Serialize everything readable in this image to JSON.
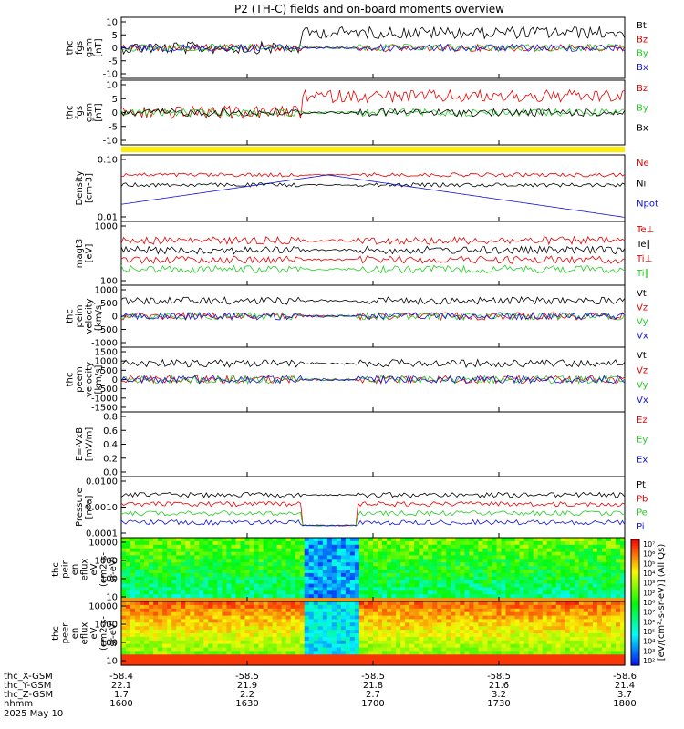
{
  "title": "P2 (TH-C) fields and on-board moments overview",
  "colors": {
    "black": "#000000",
    "red": "#e60000",
    "green": "#22cc22",
    "blue": "#1111dd",
    "yellow": "#ffee00"
  },
  "chart_data": {
    "type": "line",
    "x_range": [
      1600,
      1800
    ],
    "x_ticks": [
      "1600",
      "1630",
      "1700",
      "1730",
      "1800"
    ],
    "panels": [
      {
        "id": "fgs-gsm",
        "label": [
          "thc",
          "fgs",
          "gsm",
          "[nT]"
        ],
        "ylim": [
          -10,
          10
        ],
        "yticks": [
          "10",
          "5",
          "0",
          "-5",
          "-10"
        ],
        "legend": [
          {
            "name": "Bt",
            "color": "black"
          },
          {
            "name": "Bz",
            "color": "red"
          },
          {
            "name": "By",
            "color": "green"
          },
          {
            "name": "Bx",
            "color": "blue"
          }
        ]
      },
      {
        "id": "fgs-dsl",
        "label": [
          "thc",
          "fgs",
          "gsm",
          "[nT]"
        ],
        "ylim": [
          -12,
          12
        ],
        "yticks": [
          "10",
          "5",
          "0",
          "-5",
          "-10"
        ],
        "legend": [
          {
            "name": "Bz",
            "color": "red"
          },
          {
            "name": "By",
            "color": "green"
          },
          {
            "name": "Bx",
            "color": "black"
          }
        ]
      },
      {
        "id": "density",
        "label": [
          "Density",
          "[cm-3]"
        ],
        "yticks": [
          "0.10",
          "0.01"
        ],
        "log": true,
        "legend": [
          {
            "name": "Ne",
            "color": "red"
          },
          {
            "name": "Ni",
            "color": "black"
          },
          {
            "name": "Npot",
            "color": "blue"
          }
        ]
      },
      {
        "id": "temperature",
        "label": [
          "magt3",
          "[eV]"
        ],
        "yticks": [
          "1000",
          "100"
        ],
        "log": true,
        "legend": [
          {
            "name": "Te⊥",
            "color": "red"
          },
          {
            "name": "Te∥",
            "color": "black"
          },
          {
            "name": "Ti⊥",
            "color": "red"
          },
          {
            "name": "Ti∥",
            "color": "green"
          }
        ]
      },
      {
        "id": "peim-velocity",
        "label": [
          "thc",
          "peim",
          "velocity",
          "[km/s]"
        ],
        "ylim": [
          -1000,
          1000
        ],
        "yticks": [
          "1000",
          "500",
          "0",
          "-500",
          "-1000"
        ],
        "legend": [
          {
            "name": "Vt",
            "color": "black"
          },
          {
            "name": "Vz",
            "color": "red"
          },
          {
            "name": "Vy",
            "color": "green"
          },
          {
            "name": "Vx",
            "color": "blue"
          }
        ]
      },
      {
        "id": "peem-velocity",
        "label": [
          "thc",
          "peem",
          "velocity",
          "[km/s]"
        ],
        "ylim": [
          -1500,
          1500
        ],
        "yticks": [
          "1500",
          "1000",
          "500",
          "0",
          "-500",
          "-1000",
          "-1500"
        ],
        "legend": [
          {
            "name": "Vt",
            "color": "black"
          },
          {
            "name": "Vz",
            "color": "red"
          },
          {
            "name": "Vy",
            "color": "green"
          },
          {
            "name": "Vx",
            "color": "blue"
          }
        ]
      },
      {
        "id": "efield",
        "label": [
          "E=-VxB",
          "[mV/m]"
        ],
        "yticks": [
          "0.8",
          "0.6",
          "0.4",
          "0.2",
          "0.0"
        ],
        "legend": [
          {
            "name": "Ez",
            "color": "red"
          },
          {
            "name": "Ey",
            "color": "green"
          },
          {
            "name": "Ex",
            "color": "blue"
          }
        ]
      },
      {
        "id": "pressure",
        "label": [
          "Pressure",
          "[nPa]"
        ],
        "yticks": [
          "0.0100",
          "0.0010",
          "0.0001"
        ],
        "log": true,
        "legend": [
          {
            "name": "Pt",
            "color": "black"
          },
          {
            "name": "Pb",
            "color": "red"
          },
          {
            "name": "Pe",
            "color": "green"
          },
          {
            "name": "Pi",
            "color": "blue"
          }
        ]
      },
      {
        "id": "peir",
        "label": [
          "thc",
          "peir",
          "en",
          "eflux",
          "eV",
          "(cm2-s-",
          "sr-eV)"
        ],
        "yticks": [
          "10000",
          "1000",
          "100",
          "10"
        ]
      },
      {
        "id": "peer",
        "label": [
          "thc",
          "peer",
          "en",
          "eflux",
          "eV",
          "(cm2-s-",
          "sr-eV)"
        ],
        "yticks": [
          "10000",
          "1000",
          "100",
          "10"
        ]
      }
    ],
    "colorbar": {
      "ticks": [
        "10⁷",
        "10⁶",
        "10⁵",
        "10⁴",
        "10³",
        "10²",
        "10⁸",
        "10⁷",
        "10⁶",
        "10⁵",
        "10⁴",
        "10³",
        "10²"
      ],
      "label": "[eV/(cm²-s-sr-eV)] (All Qs)"
    },
    "ephemeris": {
      "rows": [
        {
          "label": "thc_X-GSM",
          "values": [
            "-58.4",
            "-58.5",
            "-58.5",
            "-58.5",
            "-58.6"
          ]
        },
        {
          "label": "thc_Y-GSM",
          "values": [
            "22.1",
            "21.9",
            "21.8",
            "21.6",
            "21.4"
          ]
        },
        {
          "label": "thc_Z-GSM",
          "values": [
            "1.7",
            "2.2",
            "2.7",
            "3.2",
            "3.7"
          ]
        },
        {
          "label": "hhmm",
          "values": [
            "1600",
            "1630",
            "1700",
            "1730",
            "1800"
          ]
        }
      ],
      "date": "2025 May 10"
    }
  }
}
